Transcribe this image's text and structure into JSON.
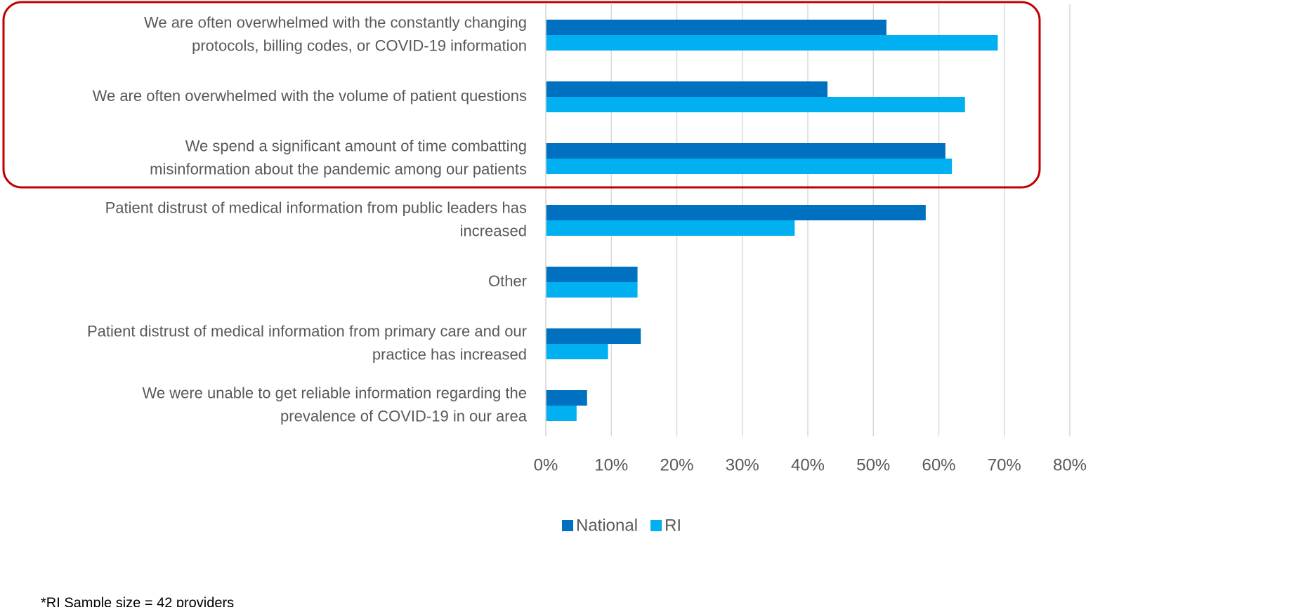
{
  "chart_data": {
    "type": "hbar",
    "categories": [
      "We are often overwhelmed with the constantly changing\nprotocols, billing codes, or COVID-19 information",
      "We are often overwhelmed with the volume of patient questions",
      "We spend a significant amount of time combatting\nmisinformation about the pandemic among our patients",
      "Patient distrust of medical information from public leaders has\nincreased",
      "Other",
      "Patient distrust of medical information from primary care and our\npractice has increased",
      "We were unable to get reliable information regarding the\nprevalence of COVID-19 in our area"
    ],
    "series": [
      {
        "name": "National",
        "color": "#0070c0",
        "values": [
          52,
          43,
          61,
          58,
          14,
          14.5,
          6.3
        ]
      },
      {
        "name": "RI",
        "color": "#00b0f0",
        "values": [
          69,
          64,
          62,
          38,
          14,
          9.5,
          4.7
        ]
      }
    ],
    "xlim": [
      0,
      80
    ],
    "xticks": [
      {
        "value": 0,
        "label": "0%"
      },
      {
        "value": 10,
        "label": "10%"
      },
      {
        "value": 20,
        "label": "20%"
      },
      {
        "value": 30,
        "label": "30%"
      },
      {
        "value": 40,
        "label": "40%"
      },
      {
        "value": 50,
        "label": "50%"
      },
      {
        "value": 60,
        "label": "60%"
      },
      {
        "value": 70,
        "label": "70%"
      },
      {
        "value": 80,
        "label": "80%"
      }
    ],
    "grid": true,
    "legend": "bottom",
    "note": "*RI Sample size = 42 providers"
  }
}
